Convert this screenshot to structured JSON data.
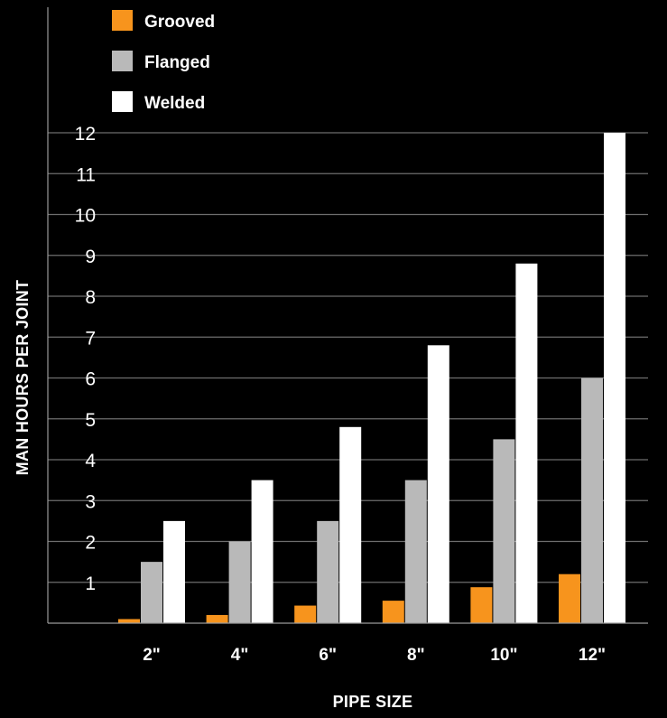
{
  "chart_data": {
    "type": "bar",
    "categories": [
      "2\"",
      "4\"",
      "6\"",
      "8\"",
      "10\"",
      "12\""
    ],
    "series": [
      {
        "name": "Grooved",
        "color": "#f7941d",
        "values": [
          0.1,
          0.2,
          0.43,
          0.55,
          0.88,
          1.2
        ]
      },
      {
        "name": "Flanged",
        "color": "#b9b9b9",
        "values": [
          1.5,
          2.0,
          2.5,
          3.5,
          4.5,
          6.0
        ]
      },
      {
        "name": "Welded",
        "color": "#ffffff",
        "values": [
          2.5,
          3.5,
          4.8,
          6.8,
          8.8,
          12.0
        ]
      }
    ],
    "title": "",
    "xlabel": "PIPE SIZE",
    "ylabel": "MAN HOURS PER JOINT",
    "ylim": [
      0,
      12
    ],
    "yticks": [
      "1",
      "2",
      "3",
      "4",
      "5",
      "6",
      "7",
      "8",
      "9",
      "10",
      "11",
      "12"
    ],
    "grid": true,
    "legend_position": "top-left",
    "background": "#000000"
  }
}
